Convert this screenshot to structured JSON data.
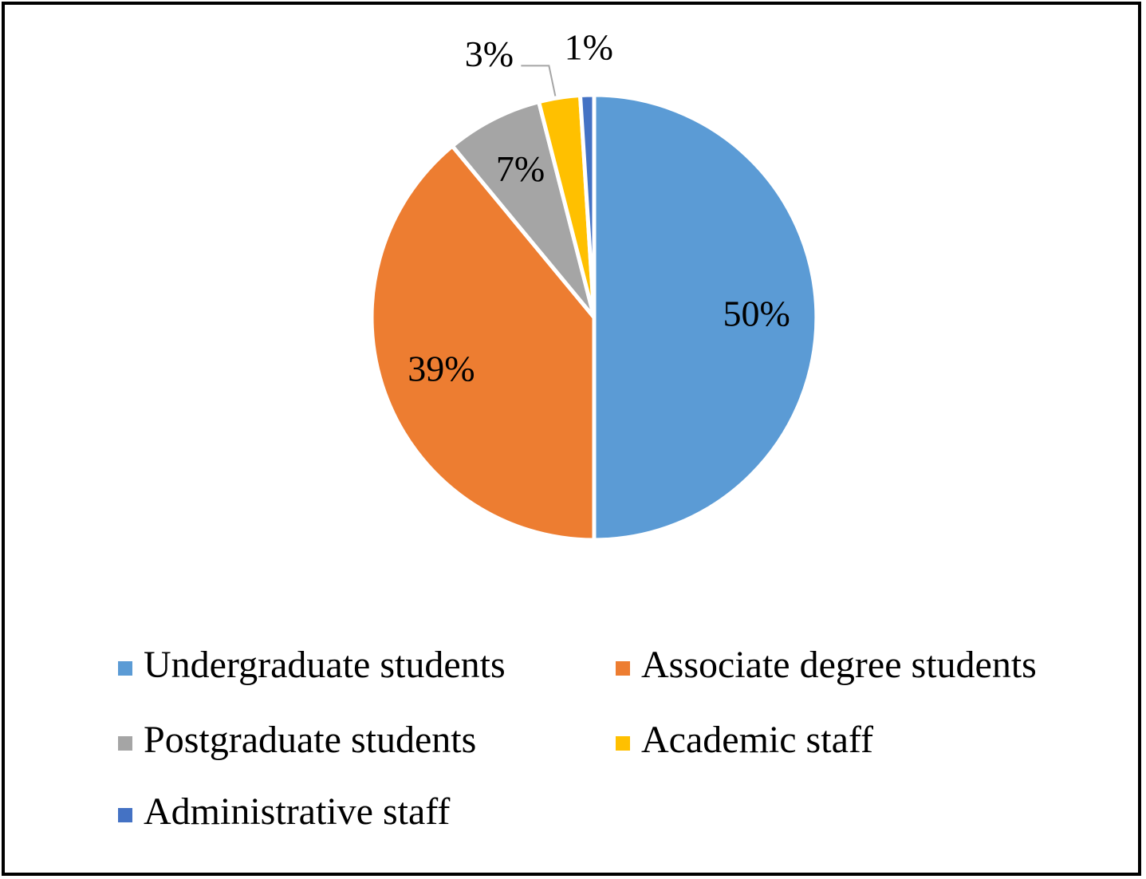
{
  "chart_data": {
    "type": "pie",
    "categories": [
      "Undergraduate students",
      "Associate degree students",
      "Postgraduate students",
      "Academic staff",
      "Administrative staff"
    ],
    "values": [
      50,
      39,
      7,
      3,
      1
    ],
    "value_labels": [
      "50%",
      "39%",
      "7%",
      "3%",
      "1%"
    ],
    "colors": [
      "#5b9bd5",
      "#ed7d31",
      "#a5a5a5",
      "#ffc000",
      "#4472c4"
    ]
  }
}
